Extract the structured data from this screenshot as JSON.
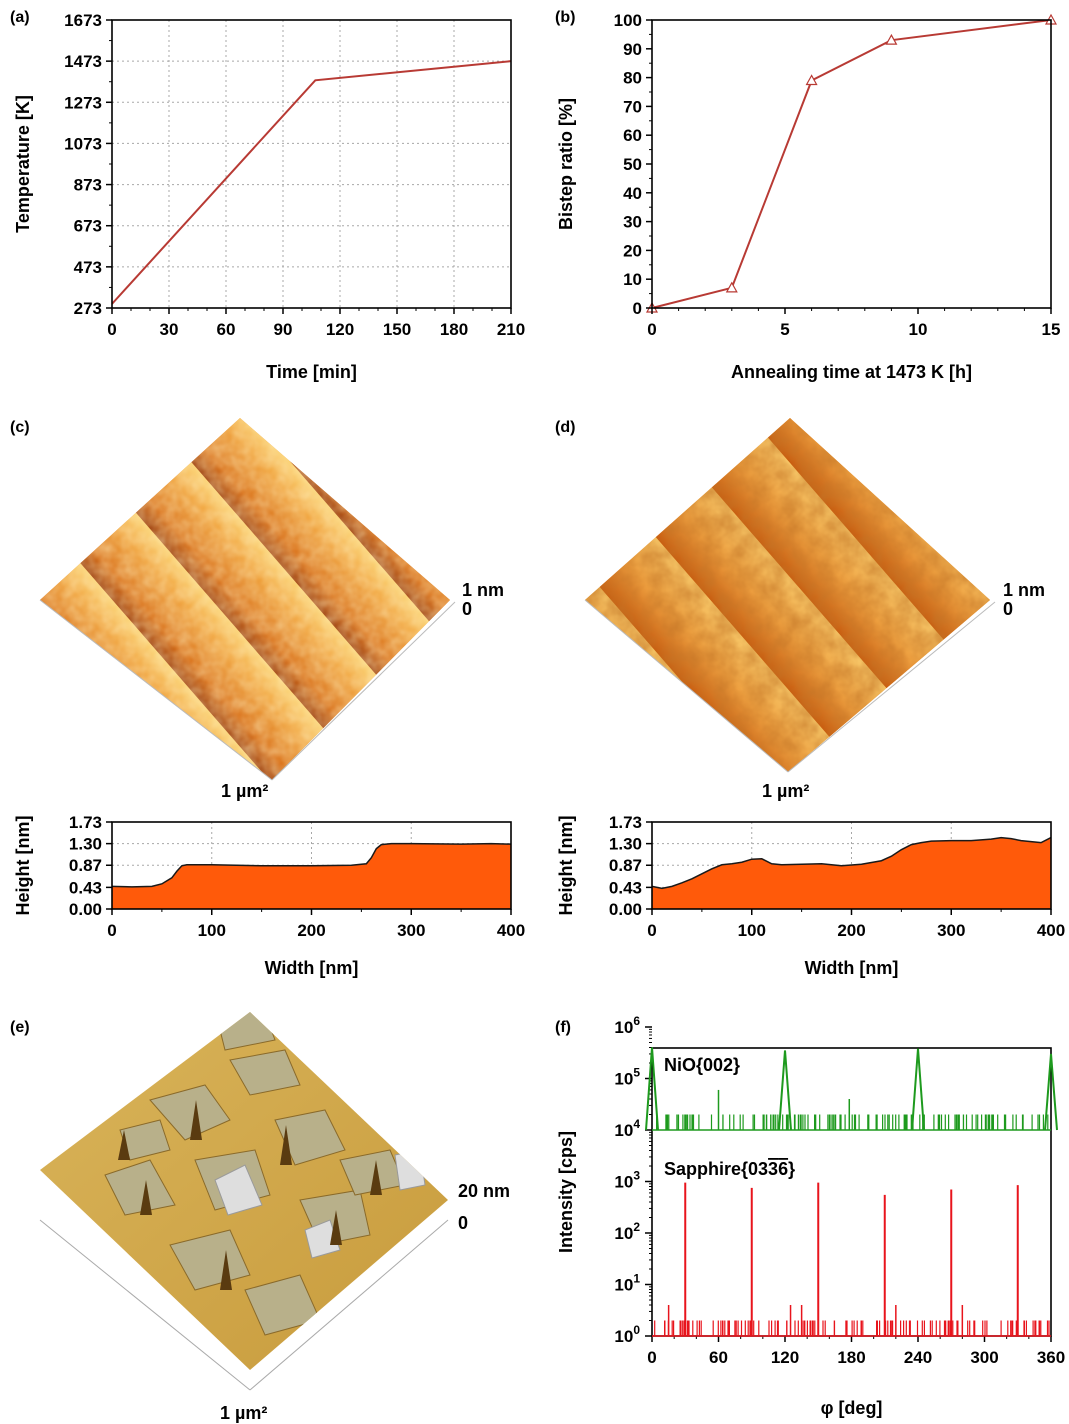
{
  "chart_data": [
    {
      "panel": "(a)",
      "type": "line",
      "xlabel": "Time [min]",
      "ylabel": "Temperature [K]",
      "xlim": [
        0,
        210
      ],
      "ylim": [
        273,
        1673
      ],
      "xticks": [
        0,
        30,
        60,
        90,
        120,
        150,
        180,
        210
      ],
      "yticks": [
        273,
        473,
        673,
        873,
        1073,
        1273,
        1473,
        1673
      ],
      "grid": true,
      "color": "#b83a34",
      "x": [
        0,
        107,
        210
      ],
      "y": [
        293,
        1380,
        1473
      ]
    },
    {
      "panel": "(b)",
      "type": "line",
      "xlabel": "Annealing time at 1473 K [h]",
      "ylabel": "Bistep ratio [%]",
      "xlim": [
        0,
        15
      ],
      "ylim": [
        0,
        100
      ],
      "xticks": [
        0,
        5,
        10,
        15
      ],
      "yticks": [
        0,
        10,
        20,
        30,
        40,
        50,
        60,
        70,
        80,
        90,
        100
      ],
      "grid": false,
      "marker": "triangle-open",
      "color": "#b83a34",
      "x": [
        0,
        3,
        6,
        9,
        15
      ],
      "y": [
        0,
        7,
        79,
        93,
        100
      ]
    },
    {
      "panel": "(c)",
      "type": "area",
      "image_labels": {
        "height": "1 nm",
        "zero": "0",
        "area": "1 µm²"
      },
      "xlabel": "Width [nm]",
      "ylabel": "Height [nm]",
      "xlim": [
        0,
        400
      ],
      "ylim": [
        0,
        1.73
      ],
      "xticks": [
        0,
        100,
        200,
        300,
        400
      ],
      "yticks": [
        "0.00",
        "0.43",
        "0.87",
        "1.30",
        "1.73"
      ],
      "grid": true,
      "fill": "#ff5a0a",
      "x": [
        0,
        20,
        40,
        50,
        60,
        65,
        70,
        75,
        80,
        100,
        150,
        200,
        240,
        255,
        260,
        265,
        270,
        280,
        300,
        350,
        380,
        400
      ],
      "y": [
        0.45,
        0.44,
        0.45,
        0.5,
        0.62,
        0.75,
        0.86,
        0.88,
        0.88,
        0.88,
        0.86,
        0.86,
        0.87,
        0.9,
        1.02,
        1.2,
        1.28,
        1.3,
        1.3,
        1.29,
        1.3,
        1.29
      ]
    },
    {
      "panel": "(d)",
      "type": "area",
      "image_labels": {
        "height": "1 nm",
        "zero": "0",
        "area": "1 µm²"
      },
      "xlabel": "Width [nm]",
      "ylabel": "Height [nm]",
      "xlim": [
        0,
        400
      ],
      "ylim": [
        0,
        1.73
      ],
      "xticks": [
        0,
        100,
        200,
        300,
        400
      ],
      "yticks": [
        "0.00",
        "0.43",
        "0.87",
        "1.30",
        "1.73"
      ],
      "grid": true,
      "fill": "#ff5a0a",
      "x": [
        0,
        10,
        20,
        30,
        40,
        50,
        60,
        70,
        80,
        90,
        100,
        110,
        120,
        130,
        150,
        170,
        190,
        210,
        230,
        240,
        250,
        260,
        270,
        280,
        300,
        320,
        340,
        350,
        360,
        370,
        380,
        390,
        400
      ],
      "y": [
        0.45,
        0.41,
        0.45,
        0.52,
        0.6,
        0.7,
        0.8,
        0.88,
        0.9,
        0.93,
        0.99,
        1.0,
        0.9,
        0.88,
        0.89,
        0.9,
        0.86,
        0.89,
        0.96,
        1.05,
        1.18,
        1.28,
        1.32,
        1.35,
        1.36,
        1.36,
        1.39,
        1.42,
        1.4,
        1.36,
        1.34,
        1.32,
        1.42
      ]
    },
    {
      "panel": "(e)",
      "type": "heatmap",
      "image_labels": {
        "height": "20 nm",
        "zero": "0",
        "area": "1 µm²"
      }
    },
    {
      "panel": "(f)",
      "type": "line",
      "xlabel": "φ [deg]",
      "ylabel": "Intensity [cps]",
      "xlim": [
        0,
        360
      ],
      "xticks": [
        0,
        60,
        120,
        180,
        240,
        300,
        360
      ],
      "scale": "log",
      "series": [
        {
          "name": "NiO{002}",
          "color": "#1e9a1e",
          "ylim": [
            10000,
            1000000
          ],
          "baseline": 10000,
          "noise_level": 20000,
          "peaks": [
            {
              "x": 0,
              "y": 400000
            },
            {
              "x": 120,
              "y": 350000
            },
            {
              "x": 240,
              "y": 380000
            },
            {
              "x": 360,
              "y": 300000
            }
          ],
          "spikes": [
            {
              "x": 60,
              "y": 60000
            },
            {
              "x": 178,
              "y": 40000
            }
          ]
        },
        {
          "name": "Sapphire{03̶3̶6}",
          "label_parts": {
            "prefix": "Sapphire{03",
            "over": "3",
            "suffix": "6}"
          },
          "color": "#e8141c",
          "ylim": [
            1,
            1000
          ],
          "baseline": 1,
          "noise_level": 2,
          "peaks": [
            {
              "x": 30,
              "y": 950
            },
            {
              "x": 90,
              "y": 750
            },
            {
              "x": 150,
              "y": 950
            },
            {
              "x": 210,
              "y": 550
            },
            {
              "x": 270,
              "y": 700
            },
            {
              "x": 330,
              "y": 850
            }
          ],
          "spikes": [
            {
              "x": 15,
              "y": 4
            },
            {
              "x": 125,
              "y": 4
            },
            {
              "x": 135,
              "y": 4
            },
            {
              "x": 220,
              "y": 4
            },
            {
              "x": 280,
              "y": 4
            }
          ]
        }
      ],
      "decades": [
        {
          "base": "10",
          "exp": "0"
        },
        {
          "base": "10",
          "exp": "1"
        },
        {
          "base": "10",
          "exp": "2"
        },
        {
          "base": "10",
          "exp": "3"
        },
        {
          "base": "10",
          "exp": "4"
        },
        {
          "base": "10",
          "exp": "5"
        },
        {
          "base": "10",
          "exp": "6"
        }
      ]
    }
  ]
}
